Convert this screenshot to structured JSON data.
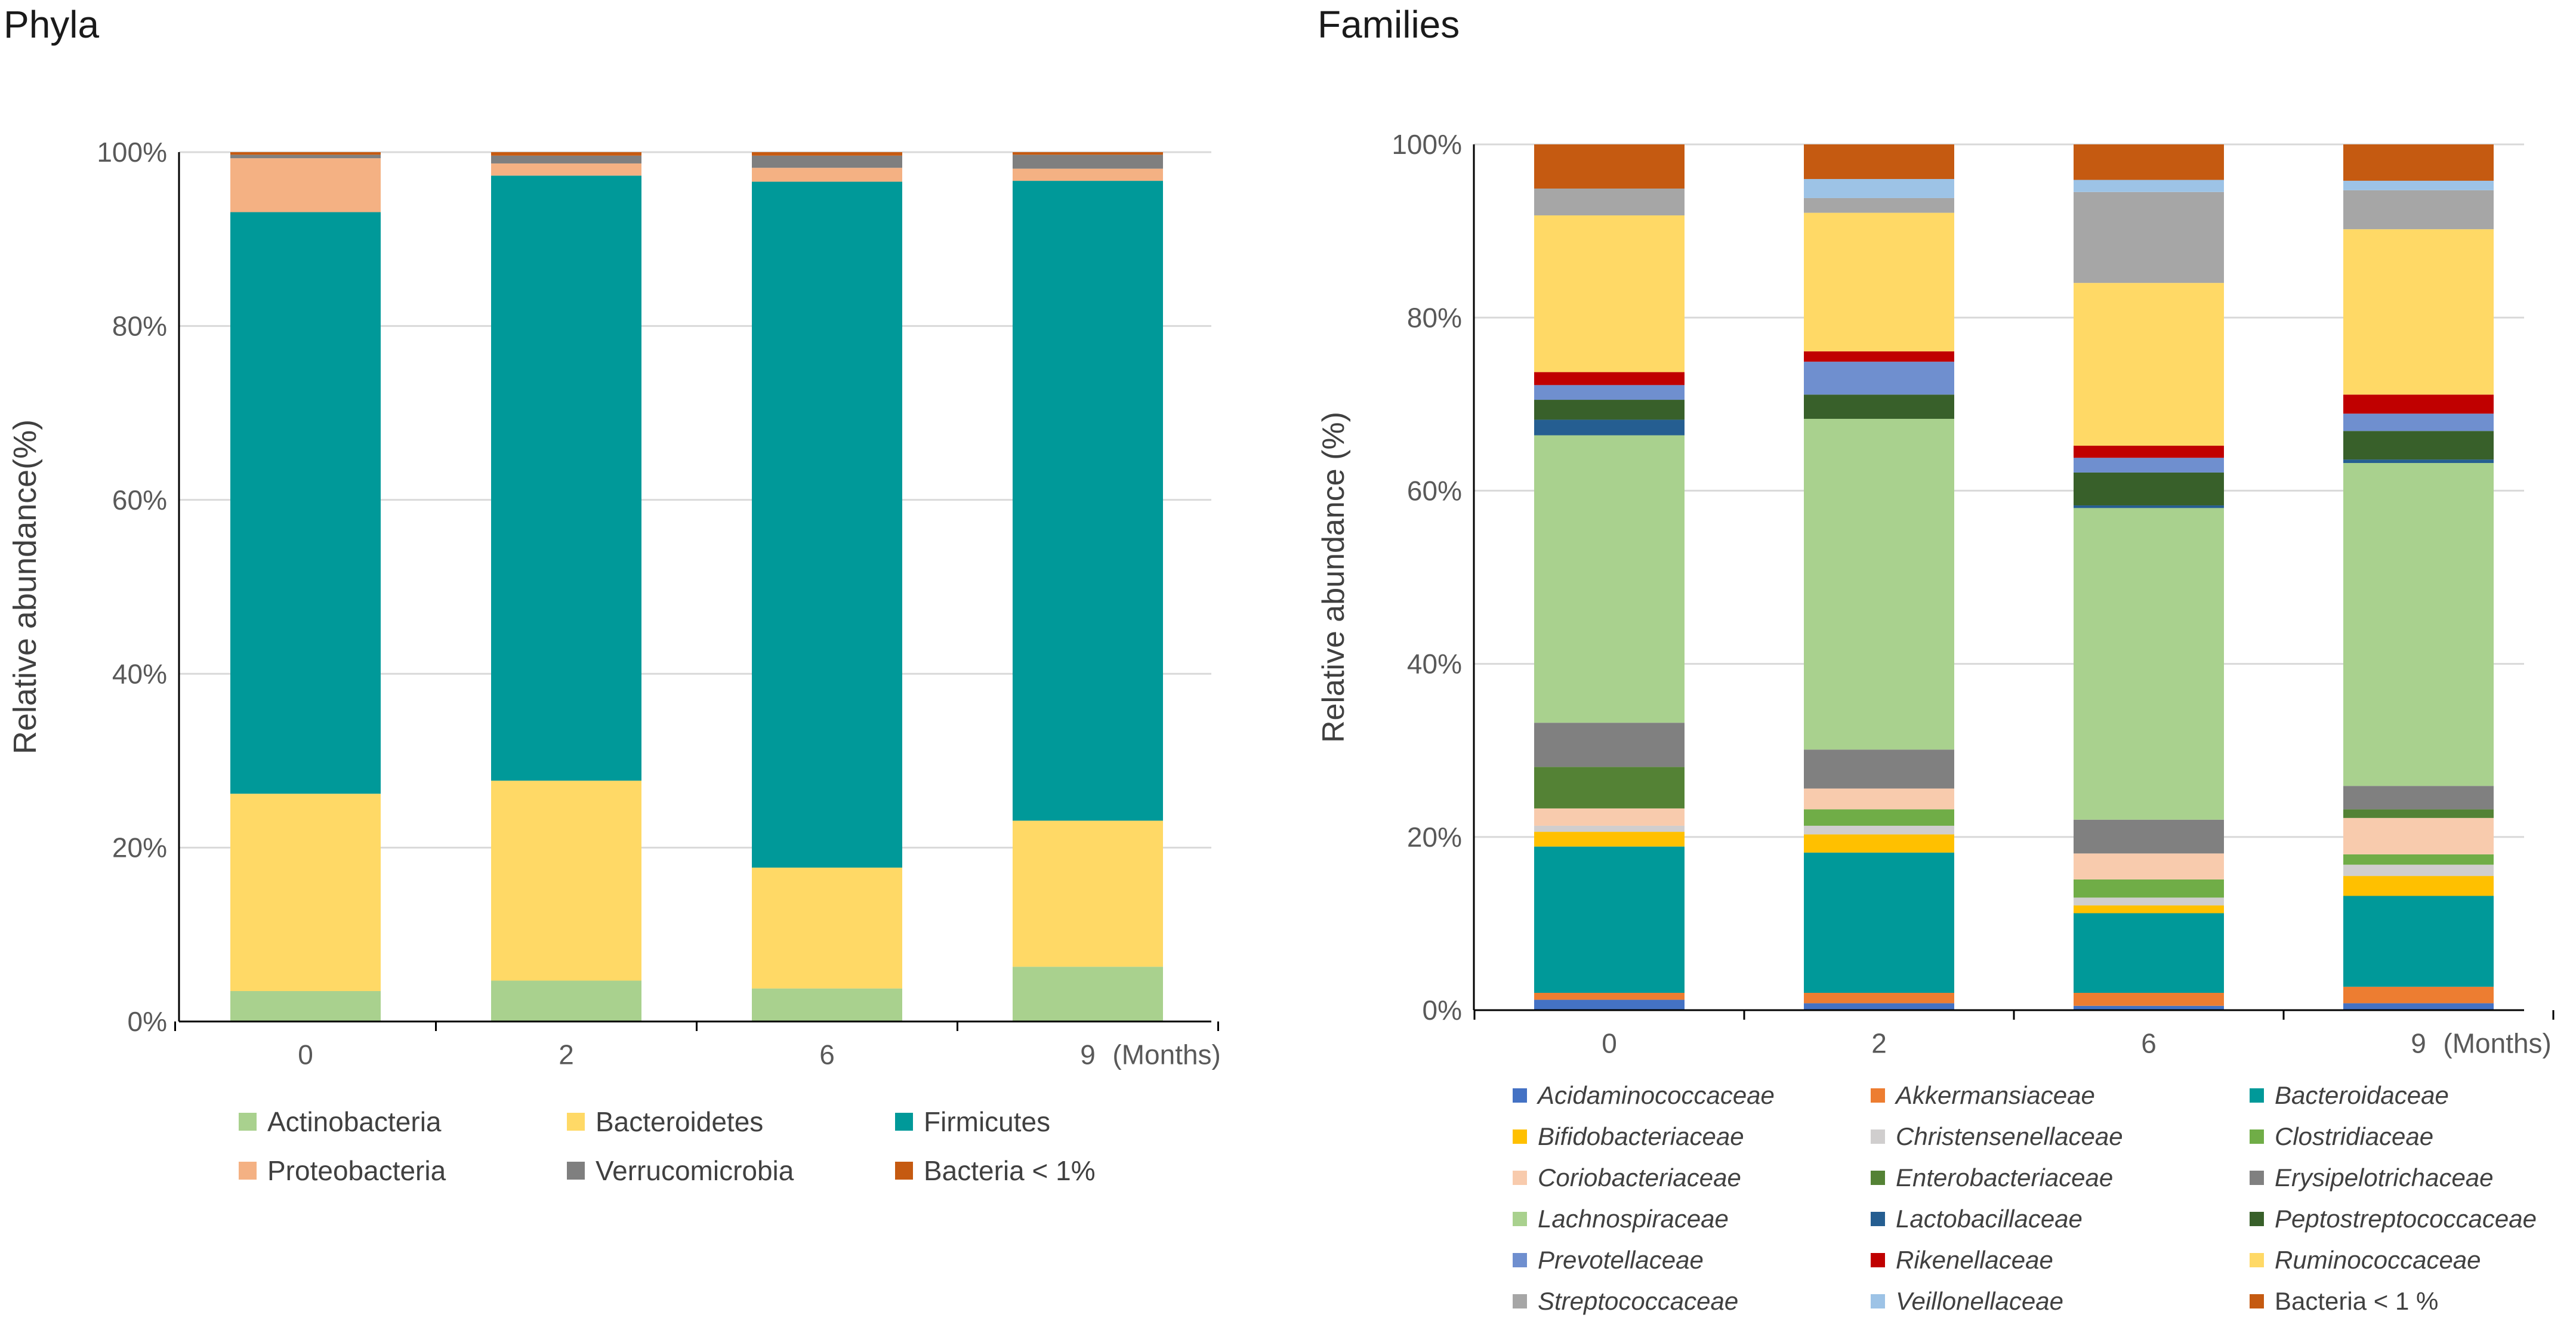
{
  "chart_data": [
    {
      "type": "bar",
      "stacked": true,
      "title": "Phyla",
      "xlabel": "(Months)",
      "ylabel": "Relative abundance(%)",
      "ylim": [
        0,
        100
      ],
      "y_ticks": [
        "0%",
        "20%",
        "40%",
        "60%",
        "80%",
        "100%"
      ],
      "categories": [
        "0",
        "2",
        "6",
        "9"
      ],
      "legend_position": "bottom",
      "series": [
        {
          "name": "Actinobacteria",
          "color": "#A9D18E",
          "values": [
            3.5,
            4.7,
            3.8,
            6.3
          ]
        },
        {
          "name": "Bacteroidetes",
          "color": "#FFD966",
          "values": [
            22.7,
            23.0,
            13.9,
            16.8
          ]
        },
        {
          "name": "Firmicutes",
          "color": "#009999",
          "values": [
            66.9,
            69.6,
            78.9,
            73.6
          ]
        },
        {
          "name": "Proteobacteria",
          "color": "#F4B183",
          "values": [
            6.2,
            1.4,
            1.6,
            1.4
          ]
        },
        {
          "name": "Verrucomicrobia",
          "color": "#7F7F7F",
          "values": [
            0.4,
            0.9,
            1.4,
            1.6
          ]
        },
        {
          "name": "Bacteria < 1%",
          "color": "#C55A11",
          "values": [
            0.3,
            0.4,
            0.4,
            0.3
          ]
        }
      ]
    },
    {
      "type": "bar",
      "stacked": true,
      "title": "Families",
      "xlabel": "(Months)",
      "ylabel": "Relative abundance (%)",
      "ylim": [
        0,
        100
      ],
      "y_ticks": [
        "0%",
        "20%",
        "40%",
        "60%",
        "80%",
        "100%"
      ],
      "categories": [
        "0",
        "2",
        "6",
        "9"
      ],
      "legend_position": "bottom",
      "series": [
        {
          "name": "Acidaminococcaceae",
          "italic": true,
          "color": "#4472C4",
          "values": [
            1.2,
            0.8,
            0.5,
            0.8
          ]
        },
        {
          "name": "Akkermansiaceae",
          "italic": true,
          "color": "#ED7D31",
          "values": [
            0.8,
            1.2,
            1.5,
            1.9
          ]
        },
        {
          "name": "Bacteroidaceae",
          "italic": true,
          "color": "#009999",
          "values": [
            16.9,
            16.2,
            9.2,
            10.5
          ]
        },
        {
          "name": "Bifidobacteriaceae",
          "italic": true,
          "color": "#FFC000",
          "values": [
            1.7,
            2.1,
            0.9,
            2.3
          ]
        },
        {
          "name": "Christensenellaceae",
          "italic": true,
          "color": "#D0CECE",
          "values": [
            0.7,
            1.0,
            0.9,
            1.3
          ]
        },
        {
          "name": "Clostridiaceae",
          "italic": true,
          "color": "#70AD47",
          "values": [
            0.0,
            1.9,
            2.1,
            1.2
          ]
        },
        {
          "name": "Coriobacteriaceae",
          "italic": true,
          "color": "#F8CBAD",
          "values": [
            2.0,
            2.4,
            3.0,
            4.2
          ]
        },
        {
          "name": "Enterobacteriaceae",
          "italic": true,
          "color": "#548235",
          "values": [
            4.8,
            0.0,
            0.0,
            1.0
          ]
        },
        {
          "name": "Erysipelotrichaceae",
          "italic": true,
          "color": "#808080",
          "values": [
            5.1,
            4.5,
            3.9,
            2.7
          ]
        },
        {
          "name": "Lachnospiraceae",
          "italic": true,
          "color": "#A9D18E",
          "values": [
            33.2,
            38.2,
            36.0,
            37.3
          ]
        },
        {
          "name": "Lactobacillaceae",
          "italic": true,
          "color": "#255E91",
          "values": [
            1.8,
            0.0,
            0.3,
            0.4
          ]
        },
        {
          "name": "Peptostreptococcaceae",
          "italic": true,
          "color": "#38602A",
          "values": [
            2.3,
            2.8,
            3.8,
            3.3
          ]
        },
        {
          "name": "Prevotellaceae",
          "italic": true,
          "color": "#6F8FCF",
          "values": [
            1.7,
            3.8,
            1.7,
            2.0
          ]
        },
        {
          "name": "Rikenellaceae",
          "italic": true,
          "color": "#C00000",
          "values": [
            1.5,
            1.2,
            1.4,
            2.2
          ]
        },
        {
          "name": "Ruminococcaceae",
          "italic": true,
          "color": "#FFD966",
          "values": [
            18.1,
            16.0,
            18.8,
            19.1
          ]
        },
        {
          "name": "Streptococcaceae",
          "italic": true,
          "color": "#A6A6A6",
          "values": [
            3.1,
            1.7,
            10.5,
            4.5
          ]
        },
        {
          "name": "Veillonellaceae",
          "italic": true,
          "color": "#9DC3E6",
          "values": [
            0.0,
            2.2,
            1.4,
            1.1
          ]
        },
        {
          "name": "Bacteria < 1 %",
          "italic": false,
          "color": "#C55A11",
          "values": [
            5.1,
            4.0,
            4.1,
            4.2
          ]
        }
      ]
    }
  ]
}
